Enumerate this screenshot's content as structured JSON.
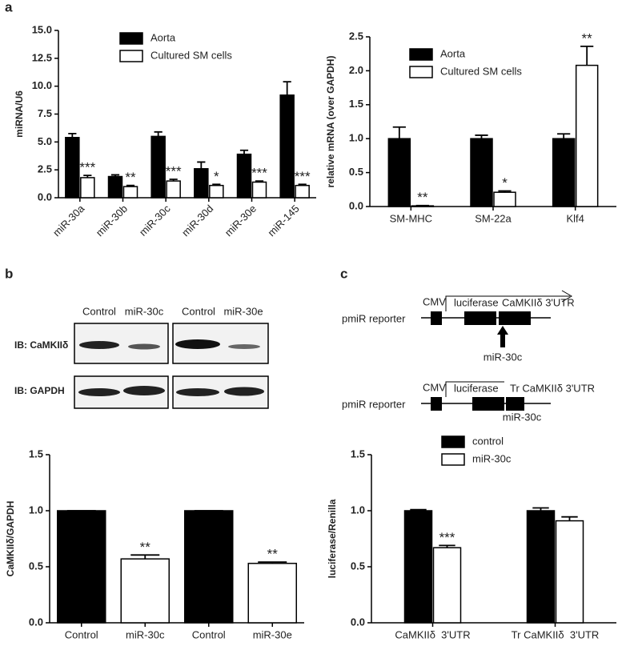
{
  "panels": [
    "a",
    "b",
    "c"
  ],
  "chart_data": [
    {
      "type": "bar",
      "ylabel": "miRNA/U6",
      "categories": [
        "miR-30a",
        "miR-30b",
        "miR-30c",
        "miR-30d",
        "miR-30e",
        "miR-145"
      ],
      "series": [
        {
          "name": "Aorta",
          "color": "#000000",
          "values": [
            5.4,
            1.9,
            5.5,
            2.6,
            3.9,
            9.2
          ],
          "errors": [
            0.35,
            0.15,
            0.4,
            0.6,
            0.35,
            1.2
          ]
        },
        {
          "name": "Cultured SM cells",
          "color": "#ffffff",
          "values": [
            1.8,
            1.0,
            1.5,
            1.1,
            1.4,
            1.1
          ],
          "errors": [
            0.2,
            0.1,
            0.15,
            0.1,
            0.1,
            0.1
          ],
          "annotations": [
            "***",
            "**",
            "***",
            "*",
            "***",
            "***"
          ]
        }
      ],
      "ylim": [
        0,
        15
      ],
      "yticks": [
        {
          "value": 0,
          "label": "0.0"
        },
        {
          "value": 2.5,
          "label": "2.5"
        },
        {
          "value": 5,
          "label": "5.0"
        },
        {
          "value": 7.5,
          "label": "7.5"
        },
        {
          "value": 10,
          "label": "10.0"
        },
        {
          "value": 12.5,
          "label": "12.5"
        },
        {
          "value": 15,
          "label": "15.0"
        }
      ]
    },
    {
      "type": "bar",
      "ylabel": "relative mRNA (over GAPDH)",
      "categories": [
        "SM-MHC",
        "SM-22a",
        "Klf4"
      ],
      "series": [
        {
          "name": "Aorta",
          "color": "#000000",
          "values": [
            1.0,
            1.0,
            1.0
          ],
          "errors": [
            0.17,
            0.05,
            0.07
          ]
        },
        {
          "name": "Cultured SM cells",
          "color": "#ffffff",
          "values": [
            0.01,
            0.21,
            2.08
          ],
          "errors": [
            0.005,
            0.02,
            0.28
          ],
          "annotations": [
            "**",
            "*",
            "**"
          ]
        }
      ],
      "ylim": [
        0,
        2.5
      ],
      "yticks": [
        {
          "value": 0,
          "label": "0.0"
        },
        0.5,
        {
          "value": 1,
          "label": "1.0"
        },
        1.5,
        {
          "value": 2,
          "label": "2.0"
        },
        2.5
      ]
    },
    {
      "type": "bar",
      "ylabel": "CaMKIIδ/GAPDH",
      "categories": [
        "Control",
        "miR-30c",
        "Control",
        "miR-30e"
      ],
      "series": [
        {
          "colors": [
            "#000000",
            "#ffffff",
            "#000000",
            "#ffffff"
          ],
          "values": [
            1.0,
            0.57,
            1.0,
            0.53
          ],
          "errors": [
            0,
            0.035,
            0,
            0.012
          ],
          "annotations": [
            null,
            "**",
            null,
            "**"
          ]
        }
      ],
      "ylim": [
        0,
        1.5
      ],
      "yticks": [
        {
          "value": 0,
          "label": "0.0"
        },
        0.5,
        {
          "value": 1,
          "label": "1.0"
        },
        1.5
      ]
    },
    {
      "type": "bar",
      "ylabel": "luciferase/Renilla",
      "categories": [
        "CaMKIIδ  3'UTR",
        "Tr CaMKIIδ  3'UTR"
      ],
      "series": [
        {
          "name": "control",
          "color": "#000000",
          "values": [
            1.0,
            1.0
          ],
          "errors": [
            0.01,
            0.025
          ]
        },
        {
          "name": "miR-30c",
          "color": "#ffffff",
          "values": [
            0.67,
            0.91
          ],
          "errors": [
            0.02,
            0.035
          ],
          "annotations": [
            "***",
            null
          ]
        }
      ],
      "ylim": [
        0,
        1.5
      ],
      "yticks": [
        {
          "value": 0,
          "label": "0.0"
        },
        0.5,
        {
          "value": 1,
          "label": "1.0"
        },
        1.5
      ]
    }
  ],
  "blot": {
    "lanes": [
      "Control",
      "miR-30c",
      "Control",
      "miR-30e"
    ],
    "rows": [
      "IB: CaMKIIδ",
      "IB: GAPDH"
    ]
  },
  "diagram": [
    {
      "name": "pmiR reporter",
      "promoter": "CMV",
      "gene": "luciferase",
      "utr": "CaMKIIδ 3'UTR",
      "site": "miR-30c"
    },
    {
      "name": "pmiR reporter",
      "promoter": "CMV",
      "gene": "luciferase",
      "utr": "Tr CaMKIIδ 3'UTR",
      "site": "miR-30c"
    }
  ]
}
